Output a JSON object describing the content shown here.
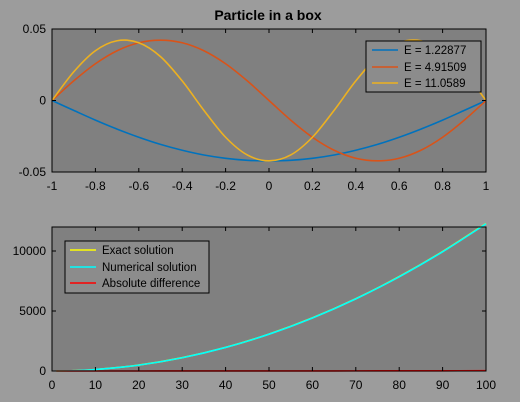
{
  "chart_data": [
    {
      "type": "line",
      "title": "Particle in a box",
      "xlabel": "",
      "ylabel": "",
      "xlim": [
        -1,
        1
      ],
      "ylim": [
        -0.05,
        0.05
      ],
      "xticks": [
        -1,
        -0.8,
        -0.6,
        -0.4,
        -0.2,
        0,
        0.2,
        0.4,
        0.6,
        0.8,
        1
      ],
      "xtick_labels": [
        "-1",
        "-0.8",
        "-0.6",
        "-0.4",
        "-0.2",
        "0",
        "0.2",
        "0.4",
        "0.6",
        "0.8",
        "1"
      ],
      "yticks": [
        -0.05,
        0,
        0.05
      ],
      "ytick_labels": [
        "-0.05",
        "0",
        "0.05"
      ],
      "grid": false,
      "legend_position": "top-right",
      "series": [
        {
          "name": "E = 1.22877",
          "color": "#0072bd",
          "x": [
            -1,
            -0.9,
            -0.8,
            -0.7,
            -0.6,
            -0.5,
            -0.4,
            -0.3,
            -0.2,
            -0.1,
            0,
            0.1,
            0.2,
            0.3,
            0.4,
            0.5,
            0.6,
            0.7,
            0.8,
            0.9,
            1
          ],
          "y": [
            0,
            -0.0069,
            -0.0137,
            -0.02,
            -0.0257,
            -0.0307,
            -0.0348,
            -0.0381,
            -0.0404,
            -0.0418,
            -0.0422,
            -0.0418,
            -0.0404,
            -0.0381,
            -0.0348,
            -0.0307,
            -0.0257,
            -0.02,
            -0.0137,
            -0.0069,
            0
          ]
        },
        {
          "name": "E = 4.91509",
          "color": "#d95319",
          "x": [
            -1,
            -0.9,
            -0.8,
            -0.7,
            -0.6,
            -0.5,
            -0.4,
            -0.3,
            -0.2,
            -0.1,
            0,
            0.1,
            0.2,
            0.3,
            0.4,
            0.5,
            0.6,
            0.7,
            0.8,
            0.9,
            1
          ],
          "y": [
            0,
            0.0137,
            0.0257,
            0.0348,
            0.0404,
            0.0422,
            0.0404,
            0.0348,
            0.0257,
            0.0137,
            0,
            -0.0137,
            -0.0257,
            -0.0348,
            -0.0404,
            -0.0422,
            -0.0404,
            -0.0348,
            -0.0257,
            -0.0137,
            0
          ]
        },
        {
          "name": "E = 11.0589",
          "color": "#edb120",
          "x": [
            -1,
            -0.9,
            -0.8,
            -0.7,
            -0.6,
            -0.5,
            -0.4,
            -0.3,
            -0.2,
            -0.1,
            0,
            0.1,
            0.2,
            0.3,
            0.4,
            0.5,
            0.6,
            0.7,
            0.8,
            0.9,
            1
          ],
          "y": [
            0,
            0.02,
            0.0348,
            0.0418,
            0.0404,
            0.0307,
            0.0137,
            -0.0069,
            -0.0257,
            -0.0381,
            -0.0422,
            -0.0381,
            -0.0257,
            -0.0069,
            0.0137,
            0.0307,
            0.0404,
            0.0418,
            0.0348,
            0.02,
            0
          ]
        }
      ]
    },
    {
      "type": "line",
      "title": "",
      "xlabel": "",
      "ylabel": "",
      "xlim": [
        0,
        100
      ],
      "ylim": [
        0,
        12000
      ],
      "xticks": [
        0,
        10,
        20,
        30,
        40,
        50,
        60,
        70,
        80,
        90,
        100
      ],
      "xtick_labels": [
        "0",
        "10",
        "20",
        "30",
        "40",
        "50",
        "60",
        "70",
        "80",
        "90",
        "100"
      ],
      "yticks": [
        0,
        5000,
        10000
      ],
      "ytick_labels": [
        "0",
        "5000",
        "10000"
      ],
      "grid": false,
      "legend_position": "top-left",
      "series": [
        {
          "name": "Exact solution",
          "color": "#ffff00",
          "x": [
            1,
            5,
            10,
            20,
            30,
            40,
            50,
            60,
            70,
            80,
            90,
            100
          ],
          "y": [
            1.2,
            30.8,
            123,
            492,
            1107,
            1967,
            3073,
            4425,
            6023,
            7866,
            9955,
            12290
          ]
        },
        {
          "name": "Numerical solution",
          "color": "#00ffff",
          "x": [
            1,
            5,
            10,
            20,
            30,
            40,
            50,
            60,
            70,
            80,
            90,
            100
          ],
          "y": [
            1.2,
            30.7,
            122.9,
            491,
            1105,
            1964,
            3068,
            4418,
            6013,
            7852,
            9937,
            12265
          ]
        },
        {
          "name": "Absolute difference",
          "color": "#ff0000",
          "x": [
            1,
            10,
            20,
            30,
            40,
            50,
            60,
            70,
            80,
            90,
            100
          ],
          "y": [
            0,
            0.1,
            1,
            2,
            3,
            5,
            7,
            10,
            14,
            18,
            25
          ]
        }
      ]
    }
  ]
}
